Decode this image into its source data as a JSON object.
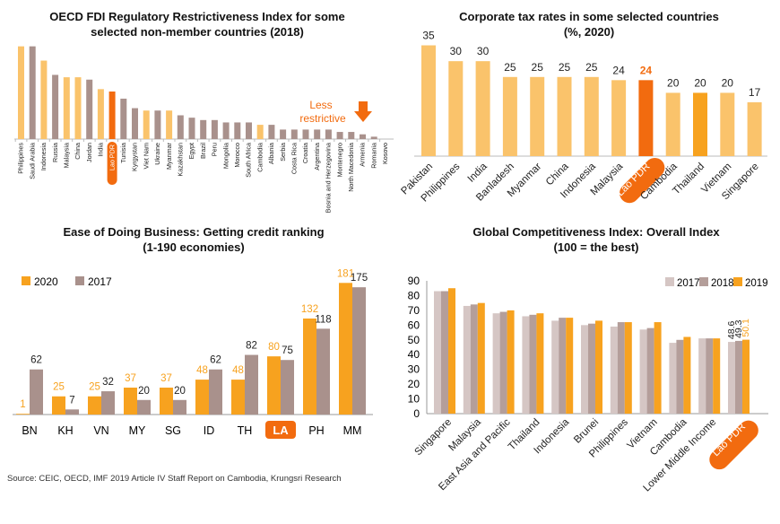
{
  "colors": {
    "light": "#FAC36B",
    "mid": "#F7A21F",
    "grey": "#A9918C",
    "dark": "#F26B0F",
    "c2017": "#D5C6C4",
    "c2018": "#B49E9A",
    "c2019": "#F7A21F"
  },
  "annotation": {
    "line1": "Less",
    "line2": "restrictive"
  },
  "source": "Source: CEIC, OECD, IMF 2019 Article IV Staff Report on Cambodia, Krungsri Research",
  "chart_data": [
    {
      "type": "bar",
      "title": "OECD FDI Regulatory Restrictiveness Index for some selected non-member countries (2018)",
      "title_lines": [
        "OECD FDI Regulatory Restrictiveness Index for some",
        "selected non-member countries (2018)"
      ],
      "categories": [
        "Philippines",
        "Saudi Arabia",
        "Indonesia",
        "Russia",
        "Malaysia",
        "China",
        "Jordan",
        "India",
        "Lao PDR",
        "Tunisia",
        "Kyrgystan",
        "Viet Nam",
        "Ukraine",
        "Myanmar",
        "Kazakhstan",
        "Egypt",
        "Brazil",
        "Peru",
        "Mongolia",
        "Morocco",
        "South Africa",
        "Cambodia",
        "Albania",
        "Serbia",
        "Costa Rica",
        "Croatia",
        "Argentina",
        "Bosnia and Herzegovina",
        "Montenegro",
        "North Macedonia",
        "Armenia",
        "Romania",
        "Kosovo"
      ],
      "values": [
        0.39,
        0.39,
        0.33,
        0.27,
        0.26,
        0.26,
        0.25,
        0.21,
        0.2,
        0.17,
        0.13,
        0.12,
        0.12,
        0.12,
        0.1,
        0.09,
        0.08,
        0.08,
        0.07,
        0.07,
        0.07,
        0.06,
        0.06,
        0.04,
        0.04,
        0.04,
        0.04,
        0.04,
        0.03,
        0.03,
        0.02,
        0.01,
        0.0
      ],
      "bar_colors": [
        "light",
        "grey",
        "light",
        "grey",
        "light",
        "light",
        "grey",
        "light",
        "dark",
        "grey",
        "grey",
        "light",
        "grey",
        "light",
        "grey",
        "grey",
        "grey",
        "grey",
        "grey",
        "grey",
        "grey",
        "light",
        "grey",
        "grey",
        "grey",
        "grey",
        "grey",
        "grey",
        "grey",
        "grey",
        "grey",
        "grey",
        "grey"
      ],
      "highlight": "Lao PDR",
      "ylim": [
        0,
        0.4
      ]
    },
    {
      "type": "bar",
      "title": "Corporate tax rates in some selected countries (%, 2020)",
      "title_lines": [
        "Corporate tax rates in some selected countries",
        "(%, 2020)"
      ],
      "categories": [
        "Pakistan",
        "Philippines",
        "India",
        "Banladesh",
        "Myanmar",
        "China",
        "Indonesia",
        "Malaysia",
        "Lao PDR",
        "Cambodia",
        "Thailand",
        "Vietnam",
        "Singapore"
      ],
      "values": [
        35,
        30,
        30,
        25,
        25,
        25,
        25,
        24,
        24,
        20,
        20,
        20,
        17
      ],
      "bar_colors": [
        "light",
        "light",
        "light",
        "light",
        "light",
        "light",
        "light",
        "light",
        "dark",
        "light",
        "mid",
        "light",
        "light"
      ],
      "highlight": "Lao PDR",
      "ylim": [
        0,
        36
      ]
    },
    {
      "type": "bar",
      "title": "Ease of Doing Business: Getting credit ranking (1-190 economies)",
      "title_lines": [
        "Ease of Doing Business: Getting credit ranking",
        "(1-190 economies)"
      ],
      "categories": [
        "BN",
        "KH",
        "VN",
        "MY",
        "SG",
        "ID",
        "TH",
        "LA",
        "PH",
        "MM"
      ],
      "series": [
        {
          "name": "2020",
          "values": [
            1,
            25,
            25,
            37,
            37,
            48,
            48,
            80,
            132,
            181
          ]
        },
        {
          "name": "2017",
          "values": [
            62,
            7,
            32,
            20,
            20,
            62,
            82,
            75,
            118,
            175
          ]
        }
      ],
      "highlight": "LA",
      "ylim": [
        0,
        190
      ]
    },
    {
      "type": "bar",
      "title": "Global Competitiveness Index: Overall Index (100 = the best)",
      "title_lines": [
        "Global Competitiveness Index: Overall Index",
        "(100 = the best)"
      ],
      "categories": [
        "Singapore",
        "Malaysia",
        "East Asia and Pacific",
        "Thailand",
        "Indonesia",
        "Brunei",
        "Philippines",
        "Vietnam",
        "Cambodia",
        "Lower Middle Income",
        "Lao PDR"
      ],
      "series": [
        {
          "name": "2017",
          "values": [
            83,
            73,
            68,
            66,
            63,
            60,
            59,
            57,
            48,
            51,
            48.6
          ]
        },
        {
          "name": "2018",
          "values": [
            83,
            74,
            69,
            67,
            65,
            61,
            62,
            58,
            50,
            51,
            49.3
          ]
        },
        {
          "name": "2019",
          "values": [
            85,
            75,
            70,
            68,
            65,
            63,
            62,
            62,
            52,
            51,
            50.1
          ]
        }
      ],
      "data_labels": [
        "48.6",
        "49.3",
        "50.1"
      ],
      "yticks": [
        0,
        10,
        20,
        30,
        40,
        50,
        60,
        70,
        80,
        90
      ],
      "highlight": "Lao PDR",
      "ylim": [
        0,
        90
      ]
    }
  ]
}
